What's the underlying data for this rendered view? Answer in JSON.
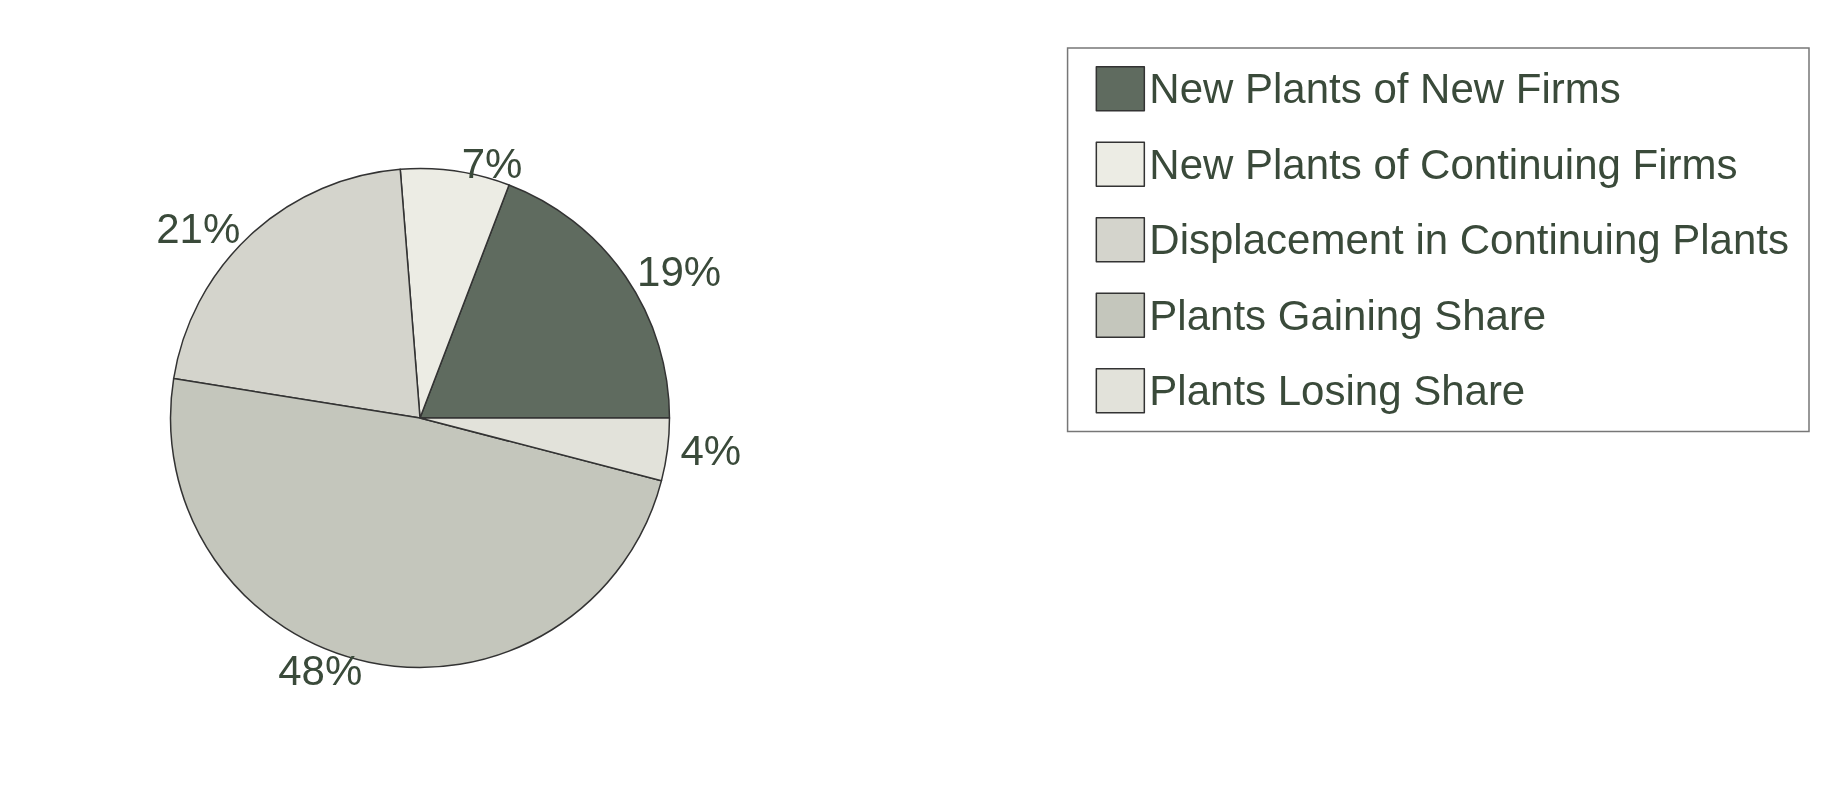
{
  "chart_data": {
    "type": "pie",
    "categories": [
      "New Plants of New Firms",
      "New Plants of Continuing Firms",
      "Displacement in Continuing Plants",
      "Plants Gaining Share",
      "Plants Losing Share"
    ],
    "values": [
      19,
      7,
      21,
      48,
      4
    ],
    "value_labels": [
      "19%",
      "7%",
      "21%",
      "48%",
      "4%"
    ],
    "colors": [
      "#5f6b5f",
      "#ecece4",
      "#d4d4cc",
      "#c4c6bc",
      "#e2e2da"
    ],
    "legend": "right"
  }
}
